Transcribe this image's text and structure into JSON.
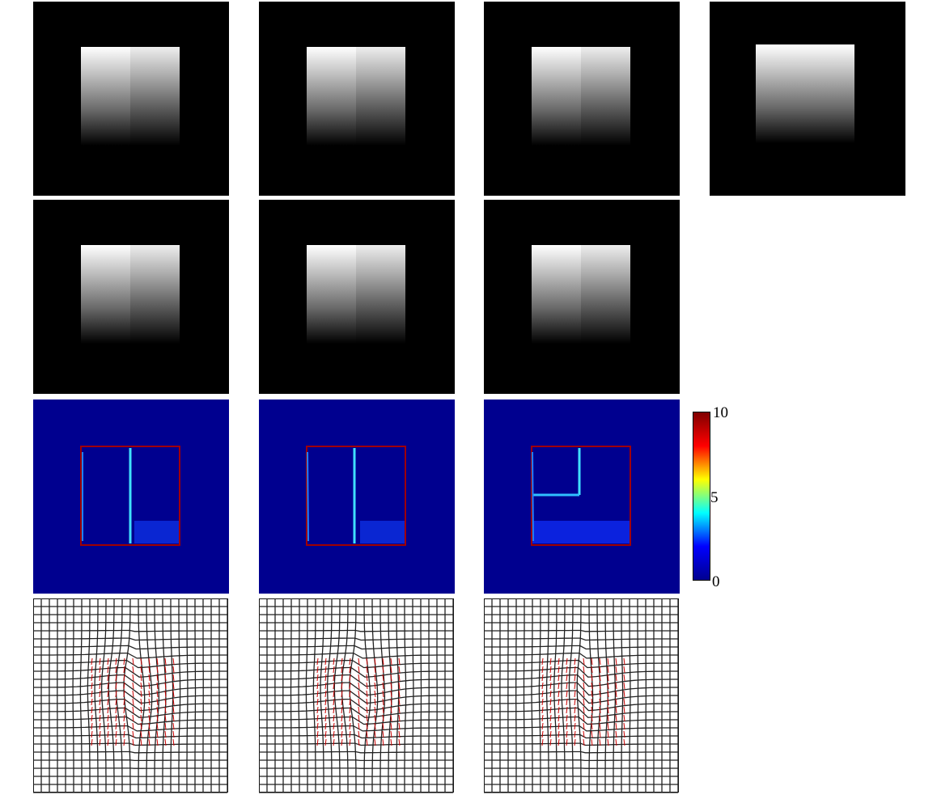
{
  "figure": {
    "rows": [
      "warped",
      "warped-variant",
      "error-map",
      "deformation-grid"
    ],
    "columns": 3,
    "reference_image": true
  },
  "colorbar": {
    "ticks": [
      "10",
      "5",
      "0"
    ],
    "range": [
      0,
      10
    ],
    "colormap": [
      "#00008f",
      "#0000ff",
      "#00ffff",
      "#ffff00",
      "#ff0000",
      "#800000"
    ]
  },
  "colors": {
    "error_background": "#00008f",
    "grid_line": "#000000",
    "grid_vector": "#cc0000"
  }
}
